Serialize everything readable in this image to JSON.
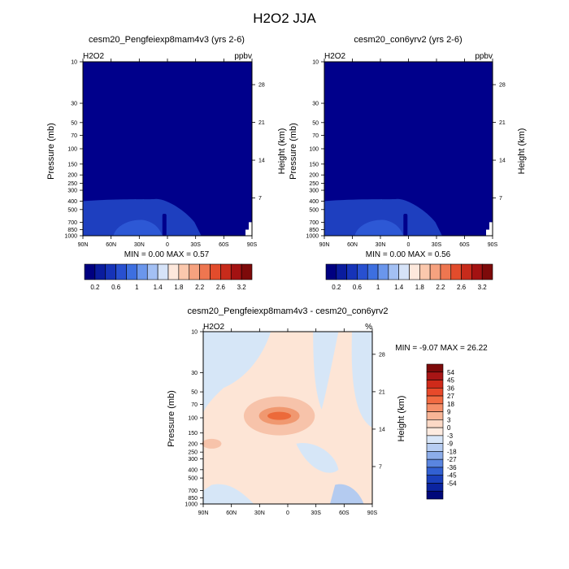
{
  "page_title": "H2O2 JJA",
  "colors": {
    "abs_low": "#00008b",
    "abs_mid": "#1e3fbf",
    "abs_edge": "#3a6ee8",
    "diff_zero": "#fde5d6",
    "diff_light_blue": "#d6e6f7",
    "diff_blue": "#b4cbf0",
    "diff_pink": "#f7c3aa",
    "diff_salmon": "#f09870",
    "diff_orange": "#ec6a3a"
  },
  "panels": [
    {
      "id": "left",
      "title": "cesm20_Pengfeiexp8mam4v3 (yrs 2-6)",
      "var_label": "H2O2",
      "units": "ppbv",
      "min_max": "MIN =   0.00  MAX =   0.57",
      "field_max": 0.57
    },
    {
      "id": "right",
      "title": "cesm20_con6yrv2 (yrs 2-6)",
      "var_label": "H2O2",
      "units": "ppbv",
      "min_max": "MIN =   0.00  MAX =   0.56",
      "field_max": 0.56
    },
    {
      "id": "diff",
      "title": "cesm20_Pengfeiexp8mam4v3 - cesm20_con6yrv2",
      "var_label": "H2O2",
      "units": "%",
      "min_max": "MIN =  -9.07  MAX =  26.22",
      "field_min": -9.07,
      "field_max": 26.22
    }
  ],
  "chart_data": [
    {
      "type": "heatmap",
      "title": "cesm20_Pengfeiexp8mam4v3 (yrs 2-6)",
      "variable": "H2O2",
      "units": "ppbv",
      "xlabel": "",
      "ylabel": "Pressure (mb)",
      "y2label": "Height (km)",
      "x_ticks": [
        "90N",
        "60N",
        "30N",
        "0",
        "30S",
        "60S",
        "90S"
      ],
      "x_range": [
        90,
        -90
      ],
      "y_ticks": [
        "10",
        "30",
        "50",
        "70",
        "100",
        "150",
        "200",
        "250",
        "300",
        "400",
        "500",
        "700",
        "850",
        "1000"
      ],
      "y_range_mb": [
        1000,
        10
      ],
      "y_scale": "log",
      "y2_ticks": [
        "28",
        "21",
        "14",
        "7"
      ],
      "min": 0.0,
      "max": 0.57,
      "colorbar_labels": [
        "0.2",
        "0.6",
        "1",
        "1.4",
        "1.8",
        "2.2",
        "2.6",
        "3.2"
      ]
    },
    {
      "type": "heatmap",
      "title": "cesm20_con6yrv2 (yrs 2-6)",
      "variable": "H2O2",
      "units": "ppbv",
      "xlabel": "",
      "ylabel": "Pressure (mb)",
      "y2label": "Height (km)",
      "x_ticks": [
        "90N",
        "60N",
        "30N",
        "0",
        "30S",
        "60S",
        "90S"
      ],
      "x_range": [
        90,
        -90
      ],
      "y_ticks": [
        "10",
        "30",
        "50",
        "70",
        "100",
        "150",
        "200",
        "250",
        "300",
        "400",
        "500",
        "700",
        "850",
        "1000"
      ],
      "y_range_mb": [
        1000,
        10
      ],
      "y_scale": "log",
      "y2_ticks": [
        "28",
        "21",
        "14",
        "7"
      ],
      "min": 0.0,
      "max": 0.56,
      "colorbar_labels": [
        "0.2",
        "0.6",
        "1",
        "1.4",
        "1.8",
        "2.2",
        "2.6",
        "3.2"
      ]
    },
    {
      "type": "heatmap",
      "title": "cesm20_Pengfeiexp8mam4v3 - cesm20_con6yrv2",
      "variable": "H2O2",
      "units": "%",
      "xlabel": "",
      "ylabel": "Pressure (mb)",
      "y2label": "Height (km)",
      "x_ticks": [
        "90N",
        "60N",
        "30N",
        "0",
        "30S",
        "60S",
        "90S"
      ],
      "x_range": [
        90,
        -90
      ],
      "y_ticks": [
        "10",
        "30",
        "50",
        "70",
        "100",
        "150",
        "200",
        "250",
        "300",
        "400",
        "500",
        "700",
        "850",
        "1000"
      ],
      "y_range_mb": [
        1000,
        10
      ],
      "y_scale": "log",
      "y2_ticks": [
        "28",
        "21",
        "14",
        "7"
      ],
      "min": -9.07,
      "max": 26.22,
      "colorbar_labels": [
        "54",
        "45",
        "36",
        "27",
        "18",
        "9",
        "3",
        "0",
        "-3",
        "-9",
        "-18",
        "-27",
        "-36",
        "-45",
        "-54"
      ]
    }
  ],
  "colorbar_abs": {
    "labels": [
      "0.2",
      "0.6",
      "1",
      "1.4",
      "1.8",
      "2.2",
      "2.6",
      "3.2"
    ],
    "colors": [
      "#000080",
      "#0a1c9e",
      "#1633b8",
      "#2850d0",
      "#3d6fe0",
      "#6a96ec",
      "#a3c0f4",
      "#d6e3f8",
      "#fde8dc",
      "#fbc8ad",
      "#f6a27f",
      "#ee7650",
      "#e24c2c",
      "#c72b1b",
      "#a31212",
      "#7d0a0a"
    ]
  },
  "colorbar_diff": {
    "labels": [
      "54",
      "45",
      "36",
      "27",
      "18",
      "9",
      "3",
      "0",
      "-3",
      "-9",
      "-18",
      "-27",
      "-36",
      "-45",
      "-54"
    ],
    "colors": [
      "#7d0a0a",
      "#a81515",
      "#cf2a1a",
      "#e8492a",
      "#f26b42",
      "#f58f69",
      "#f8b596",
      "#fcd9c6",
      "#fdebe0",
      "#d8e6f8",
      "#b7cdf2",
      "#8cadea",
      "#5a85e0",
      "#3260d2",
      "#1a3fbb",
      "#0b24a0",
      "#00087a"
    ]
  }
}
